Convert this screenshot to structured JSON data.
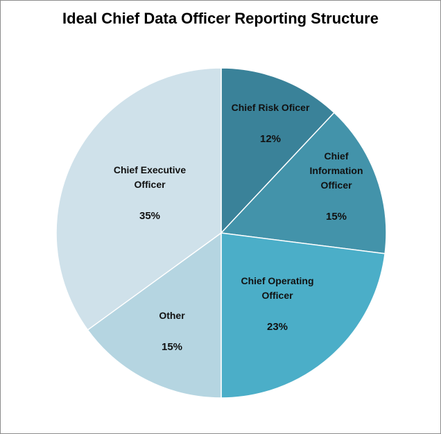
{
  "chart_data": {
    "type": "pie",
    "title": "Ideal Chief Data Officer Reporting Structure",
    "slices": [
      {
        "label": [
          "Chief Risk Oficer"
        ],
        "value": 12,
        "display": "12%",
        "color": "#3a8299"
      },
      {
        "label": [
          "Chief",
          "Information",
          "Officer"
        ],
        "value": 15,
        "display": "15%",
        "color": "#4393aa"
      },
      {
        "label": [
          "Chief Operating",
          "Officer"
        ],
        "value": 23,
        "display": "23%",
        "color": "#4baec8"
      },
      {
        "label": [
          "Other"
        ],
        "value": 15,
        "display": "15%",
        "color": "#b5d5e1"
      },
      {
        "label": [
          "Chief Executive",
          "Officer"
        ],
        "value": 35,
        "display": "35%",
        "color": "#cfe1ea"
      }
    ],
    "start_angle_deg": 0,
    "direction": "clockwise",
    "legend": "none"
  }
}
